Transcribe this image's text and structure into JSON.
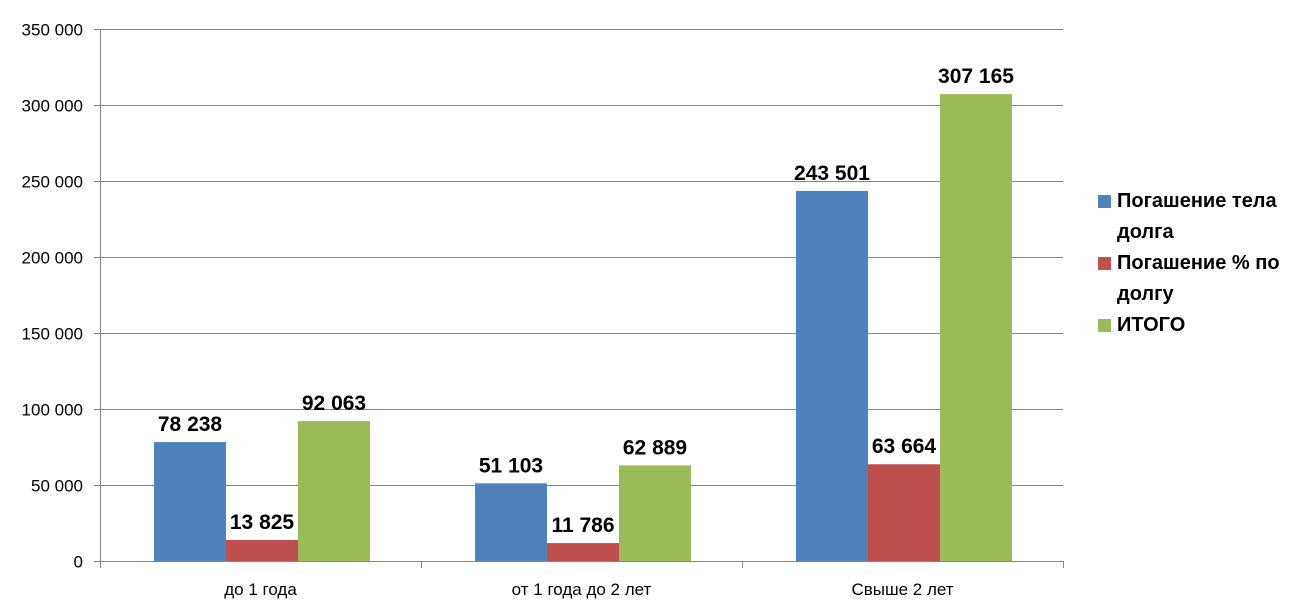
{
  "chart_data": {
    "type": "bar",
    "categories": [
      "до 1 года",
      "от 1 года до 2 лет",
      "Свыше 2 лет"
    ],
    "series": [
      {
        "name": "Погашение тела долга",
        "color": "#4F81BD",
        "values": [
          78238,
          51103,
          243501
        ],
        "labels": [
          "78 238",
          "51 103",
          "243 501"
        ]
      },
      {
        "name": "Погашение % по долгу",
        "color": "#C0504D",
        "values": [
          13825,
          11786,
          63664
        ],
        "labels": [
          "13 825",
          "11 786",
          "63 664"
        ]
      },
      {
        "name": "ИТОГО",
        "color": "#9BBB59",
        "values": [
          92063,
          62889,
          307165
        ],
        "labels": [
          "92 063",
          "62 889",
          "307 165"
        ]
      }
    ],
    "ylim": [
      0,
      350000
    ],
    "yticks": [
      0,
      50000,
      100000,
      150000,
      200000,
      250000,
      300000,
      350000
    ],
    "ytick_labels": [
      "0",
      "50 000",
      "100 000",
      "150 000",
      "200 000",
      "250 000",
      "300 000",
      "350 000"
    ],
    "grid": true,
    "legend_position": "right"
  }
}
